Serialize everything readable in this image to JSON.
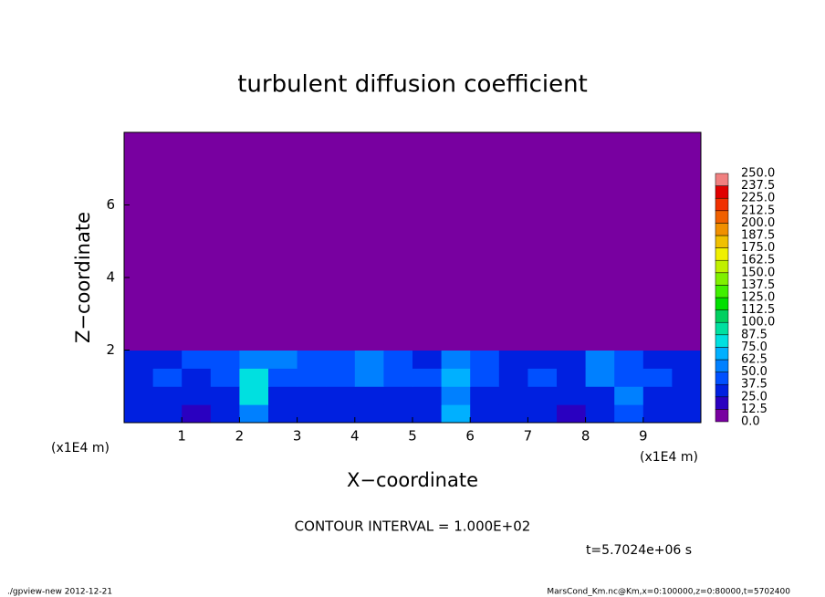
{
  "chart_data": {
    "type": "heatmap",
    "title": "turbulent diffusion coefficient",
    "x_label": "X−coordinate",
    "y_label": "Z−coordinate",
    "x_unit_labels": [
      "(x1E4 m)",
      "(x1E4 m)"
    ],
    "xlim": [
      0,
      10
    ],
    "ylim": [
      0,
      8
    ],
    "xticks": [
      1,
      2,
      3,
      4,
      5,
      6,
      7,
      8,
      9
    ],
    "yticks": [
      2,
      4,
      6
    ],
    "xbins": [
      0,
      0.5,
      1,
      1.5,
      2,
      2.5,
      3,
      3.5,
      4,
      4.5,
      5,
      5.5,
      6,
      6.5,
      7,
      7.5,
      8,
      8.5,
      9,
      9.5,
      10
    ],
    "ybins": [
      0,
      0.5,
      1,
      1.5,
      2,
      8
    ],
    "values": [
      [
        30,
        25,
        20,
        25,
        60,
        30,
        25,
        30,
        25,
        30,
        35,
        70,
        30,
        30,
        25,
        20,
        25,
        45,
        30,
        25
      ],
      [
        35,
        30,
        25,
        30,
        80,
        35,
        30,
        35,
        30,
        30,
        35,
        60,
        35,
        35,
        30,
        25,
        30,
        55,
        35,
        30
      ],
      [
        30,
        40,
        35,
        45,
        85,
        40,
        45,
        40,
        50,
        40,
        45,
        70,
        40,
        35,
        40,
        35,
        55,
        45,
        40,
        30
      ],
      [
        35,
        30,
        40,
        45,
        60,
        50,
        45,
        40,
        55,
        45,
        35,
        50,
        40,
        35,
        30,
        35,
        50,
        40,
        35,
        30
      ],
      [
        5,
        5,
        5,
        5,
        5,
        5,
        5,
        5,
        5,
        5,
        5,
        5,
        5,
        5,
        5,
        5,
        5,
        5,
        5,
        5
      ]
    ],
    "levels": [
      {
        "value": 0,
        "label": "0.0"
      },
      12.5,
      {
        "value": 25,
        "label": "25.0"
      },
      37.5,
      {
        "value": 50,
        "label": "50.0"
      },
      62.5,
      {
        "value": 75,
        "label": "75.0"
      },
      87.5,
      {
        "value": 100,
        "label": "100.0"
      },
      112.5,
      {
        "value": 125,
        "label": "125.0"
      },
      137.5,
      {
        "value": 150,
        "label": "150.0"
      },
      162.5,
      {
        "value": 175,
        "label": "175.0"
      },
      187.5,
      {
        "value": 200,
        "label": "200.0"
      },
      212.5,
      {
        "value": 225,
        "label": "225.0"
      },
      237.5,
      {
        "value": 250,
        "label": "250.0"
      }
    ],
    "level_colors": [
      "#7800a0",
      "#2a00c0",
      "#0020e0",
      "#0050ff",
      "#0080ff",
      "#00b0ff",
      "#00e0e0",
      "#00e0a0",
      "#00d060",
      "#00e000",
      "#40f000",
      "#80f000",
      "#c0f000",
      "#f0f000",
      "#f0c000",
      "#f09000",
      "#f06000",
      "#f03000",
      "#e00000",
      "#f08080"
    ],
    "contour_interval_text": "CONTOUR INTERVAL = 1.000E+02",
    "time_text": "t=5.7024e+06 s",
    "footer_left": "./gpview-new  2012-12-21",
    "footer_right": "MarsCond_Km.nc@Km,x=0:100000,z=0:80000,t=5702400"
  }
}
